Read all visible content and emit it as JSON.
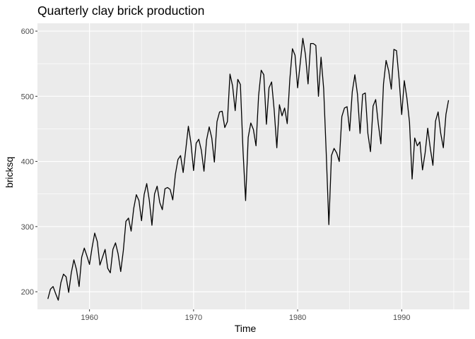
{
  "chart_data": {
    "type": "line",
    "title": "Quarterly clay brick production",
    "xlabel": "Time",
    "ylabel": "bricksq",
    "xlim": [
      1955.0,
      1996.5
    ],
    "ylim": [
      173,
      612
    ],
    "x_ticks": [
      1960,
      1970,
      1980,
      1990
    ],
    "y_ticks": [
      200,
      300,
      400,
      500,
      600
    ],
    "x_tick_labels": [
      "1960",
      "1970",
      "1980",
      "1990"
    ],
    "y_tick_labels": [
      "200",
      "300",
      "400",
      "500",
      "600"
    ],
    "grid": true,
    "panel_background": "#ebebeb",
    "grid_color": "#ffffff",
    "line_color": "#000000",
    "series": [
      {
        "start": 1956.0,
        "frequency": 4,
        "values": [
          189,
          204,
          208,
          197,
          187,
          214,
          227,
          223,
          199,
          229,
          249,
          234,
          208,
          253,
          267,
          255,
          242,
          268,
          290,
          277,
          241,
          253,
          265,
          236,
          229,
          265,
          275,
          258,
          231,
          263,
          308,
          313,
          293,
          328,
          349,
          340,
          309,
          349,
          366,
          340,
          302,
          350,
          362,
          337,
          326,
          358,
          360,
          357,
          341,
          380,
          403,
          409,
          383,
          418,
          454,
          428,
          386,
          428,
          434,
          417,
          385,
          433,
          453,
          436,
          399,
          461,
          476,
          477,
          452,
          461,
          534,
          516,
          478,
          526,
          518,
          417,
          340,
          437,
          459,
          449,
          424,
          501,
          540,
          533,
          457,
          513,
          522,
          478,
          421,
          487,
          470,
          482,
          458,
          526,
          573,
          563,
          513,
          551,
          589,
          564,
          519,
          581,
          581,
          578,
          500,
          560,
          512,
          412,
          303,
          409,
          420,
          413,
          400,
          469,
          482,
          484,
          447,
          507,
          533,
          503,
          443,
          503,
          505,
          443,
          415,
          485,
          495,
          458,
          427,
          519,
          555,
          539,
          511,
          572,
          570,
          526,
          472,
          524,
          497,
          460,
          373,
          436,
          424,
          430,
          387,
          413,
          451,
          420,
          394,
          462,
          476,
          443,
          421,
          472,
          494
        ]
      }
    ]
  }
}
